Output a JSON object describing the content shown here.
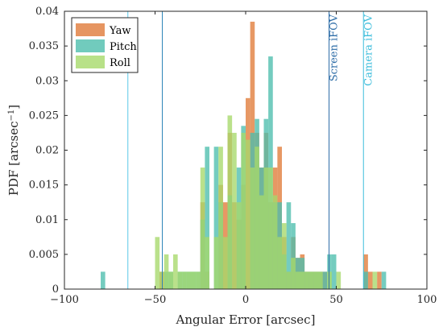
{
  "chart_data": {
    "type": "bar",
    "subtype": "overlaid-histogram",
    "title": "",
    "xlabel": "Angular Error [arcsec]",
    "ylabel": "PDF [arcsec",
    "ylabel_superscript": "−1",
    "ylabel_suffix": "]",
    "xlim": [
      -100,
      100
    ],
    "ylim": [
      0,
      0.04
    ],
    "xticks": [
      -100,
      -50,
      0,
      50,
      100
    ],
    "yticks": [
      0,
      0.005,
      0.01,
      0.015,
      0.02,
      0.025,
      0.03,
      0.035,
      0.04
    ],
    "ytick_labels": [
      "0",
      "0.005",
      "0.01",
      "0.015",
      "0.02",
      "0.025",
      "0.03",
      "0.035",
      "0.04"
    ],
    "grid": false,
    "legend_position": "top-left",
    "bin_width": 2.5,
    "series": [
      {
        "name": "Yaw",
        "color": "#E07B39",
        "bins": [
          [
            -47.5,
            0.0025
          ],
          [
            -25,
            0.0125
          ],
          [
            -22.5,
            0.0025
          ],
          [
            -15,
            0.015
          ],
          [
            -12.5,
            0.0125
          ],
          [
            -10,
            0.0225
          ],
          [
            -7.5,
            0.0125
          ],
          [
            -5,
            0.01
          ],
          [
            -2.5,
            0.015
          ],
          [
            0,
            0.0275
          ],
          [
            2.5,
            0.0385
          ],
          [
            5,
            0.0225
          ],
          [
            7.5,
            0.0175
          ],
          [
            10,
            0.0225
          ],
          [
            12.5,
            0.0125
          ],
          [
            15,
            0.0175
          ],
          [
            17.5,
            0.0205
          ],
          [
            20,
            0.0075
          ],
          [
            22.5,
            0.0025
          ],
          [
            25,
            0.0075
          ],
          [
            27.5,
            0.0045
          ],
          [
            30,
            0.005
          ],
          [
            32.5,
            0.0025
          ],
          [
            35,
            0.0025
          ],
          [
            37.5,
            0.0025
          ],
          [
            40,
            0.0025
          ],
          [
            42.5,
            0.0025
          ],
          [
            65,
            0.005
          ],
          [
            67.5,
            0.0025
          ],
          [
            72.5,
            0.0025
          ]
        ]
      },
      {
        "name": "Pitch",
        "color": "#4DBEAD",
        "bins": [
          [
            -80,
            0.0025
          ],
          [
            -45,
            0.0025
          ],
          [
            -42.5,
            0.0025
          ],
          [
            -37.5,
            0.0025
          ],
          [
            -35,
            0.0025
          ],
          [
            -32.5,
            0.0025
          ],
          [
            -30,
            0.0025
          ],
          [
            -27.5,
            0.0025
          ],
          [
            -25,
            0.01
          ],
          [
            -22.5,
            0.0205
          ],
          [
            -17.5,
            0.0205
          ],
          [
            -15,
            0.0125
          ],
          [
            -10,
            0.0135
          ],
          [
            -5,
            0.0175
          ],
          [
            -2.5,
            0.0235
          ],
          [
            2.5,
            0.0225
          ],
          [
            5,
            0.0245
          ],
          [
            7.5,
            0.0175
          ],
          [
            10,
            0.0245
          ],
          [
            12.5,
            0.0335
          ],
          [
            15,
            0.0125
          ],
          [
            17.5,
            0.0125
          ],
          [
            20,
            0.005
          ],
          [
            22.5,
            0.0125
          ],
          [
            25,
            0.0095
          ],
          [
            27.5,
            0.0045
          ],
          [
            30,
            0.0045
          ],
          [
            32.5,
            0.0025
          ],
          [
            35,
            0.0025
          ],
          [
            37.5,
            0.0025
          ],
          [
            40,
            0.0025
          ],
          [
            42.5,
            0.0025
          ],
          [
            45,
            0.005
          ],
          [
            47.5,
            0.005
          ],
          [
            65,
            0.0025
          ],
          [
            75,
            0.0025
          ]
        ]
      },
      {
        "name": "Roll",
        "color": "#A6D96A",
        "bins": [
          [
            -50,
            0.0075
          ],
          [
            -47.5,
            0.0025
          ],
          [
            -45,
            0.005
          ],
          [
            -42.5,
            0.0025
          ],
          [
            -40,
            0.005
          ],
          [
            -37.5,
            0.0025
          ],
          [
            -35,
            0.0025
          ],
          [
            -32.5,
            0.0025
          ],
          [
            -30,
            0.0025
          ],
          [
            -27.5,
            0.0025
          ],
          [
            -25,
            0.0175
          ],
          [
            -22.5,
            0.0075
          ],
          [
            -17.5,
            0.0075
          ],
          [
            -15,
            0.0205
          ],
          [
            -12.5,
            0.0075
          ],
          [
            -10,
            0.025
          ],
          [
            -7.5,
            0.0225
          ],
          [
            -5,
            0.0125
          ],
          [
            -2.5,
            0.0225
          ],
          [
            0,
            0.0215
          ],
          [
            2.5,
            0.0175
          ],
          [
            5,
            0.0205
          ],
          [
            7.5,
            0.0135
          ],
          [
            10,
            0.0175
          ],
          [
            12.5,
            0.0175
          ],
          [
            15,
            0.0135
          ],
          [
            17.5,
            0.0075
          ],
          [
            20,
            0.0095
          ],
          [
            22.5,
            0.0025
          ],
          [
            25,
            0.0045
          ],
          [
            27.5,
            0.0025
          ],
          [
            30,
            0.0025
          ],
          [
            32.5,
            0.0025
          ],
          [
            35,
            0.0025
          ],
          [
            37.5,
            0.0025
          ],
          [
            40,
            0.0025
          ],
          [
            45,
            0.0025
          ],
          [
            50,
            0.0025
          ],
          [
            70,
            0.0025
          ]
        ]
      }
    ],
    "reference_lines": [
      {
        "x": -65,
        "label": "",
        "color": "#5BC8E8"
      },
      {
        "x": -46,
        "label": "",
        "color": "#2F86B8"
      },
      {
        "x": 46,
        "label": "Screen iFOV",
        "color": "#2F6EA8"
      },
      {
        "x": 65,
        "label": "Camera iFOV",
        "color": "#3FBEDC"
      }
    ]
  }
}
